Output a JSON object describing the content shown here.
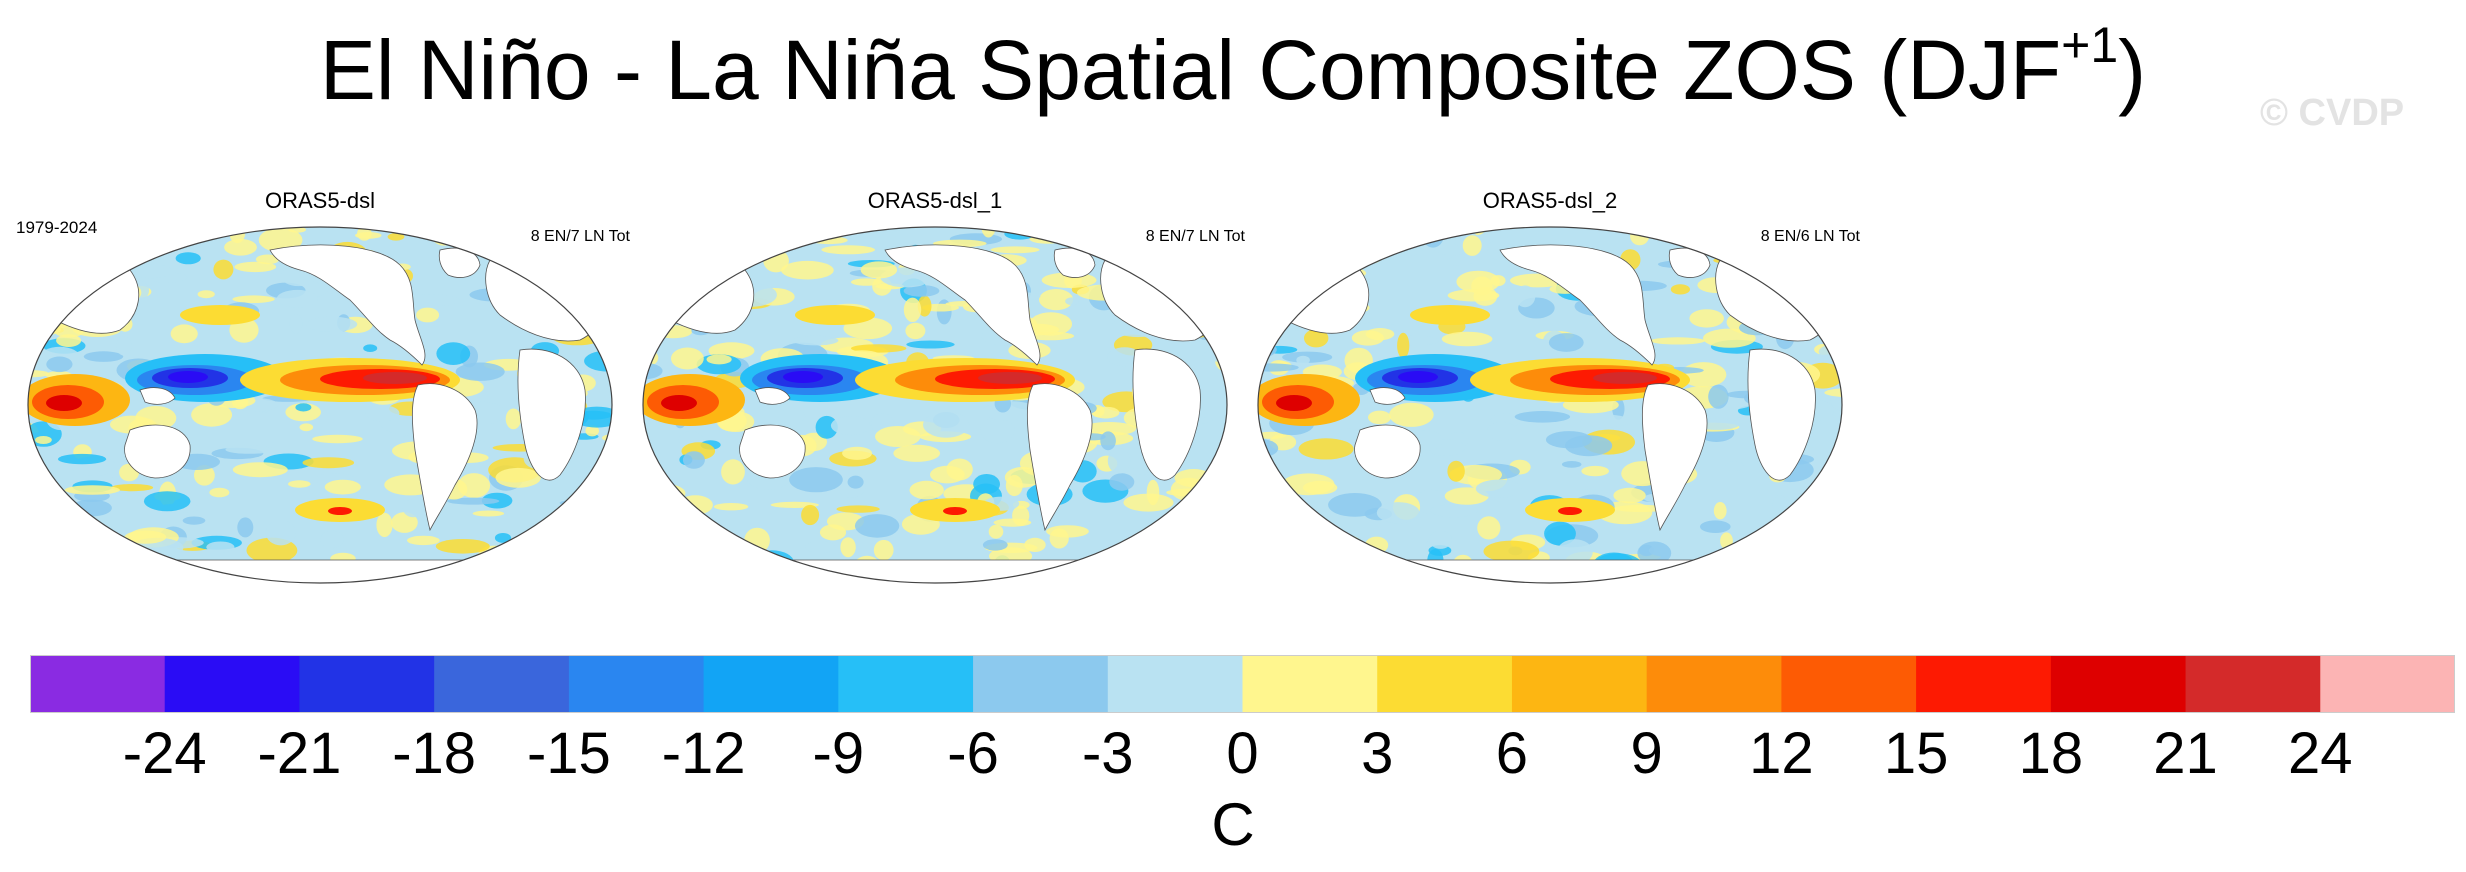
{
  "title": {
    "main": "El Niño - La Niña Spatial Composite ZOS (DJF",
    "superscript": "+1",
    "close": ")"
  },
  "watermark": "© CVDP",
  "period": "1979-2024",
  "panels": [
    {
      "title": "ORAS5-dsl",
      "count": "8 EN/7 LN Tot"
    },
    {
      "title": "ORAS5-dsl_1",
      "count": "8 EN/7 LN Tot"
    },
    {
      "title": "ORAS5-dsl_2",
      "count": "8 EN/6 LN Tot"
    }
  ],
  "colorbar": {
    "colors": [
      "#8a2be2",
      "#2a0cf5",
      "#2233e6",
      "#3a66dc",
      "#2a86f0",
      "#12a4f5",
      "#26bff7",
      "#8cc9ee",
      "#b9e2f2",
      "#fff68e",
      "#fcdc33",
      "#fdb612",
      "#fd8c0a",
      "#fd5b04",
      "#fd1a02",
      "#de0000",
      "#d42a2a",
      "#fcb4b4"
    ],
    "tick_labels": [
      "-24",
      "-21",
      "-18",
      "-15",
      "-12",
      "-9",
      "-6",
      "-3",
      "0",
      "3",
      "6",
      "9",
      "12",
      "15",
      "18",
      "21",
      "24"
    ],
    "units": "C"
  }
}
